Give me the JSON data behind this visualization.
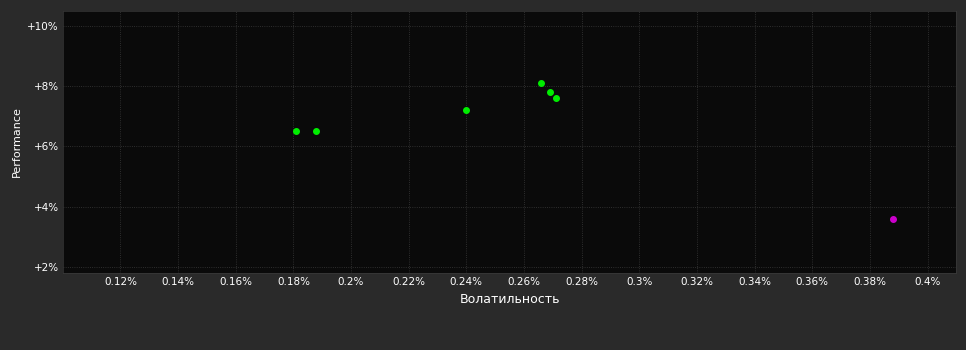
{
  "background_color": "#2a2a2a",
  "plot_bg_color": "#0a0a0a",
  "grid_color": "#3a3a3a",
  "text_color": "#ffffff",
  "xlabel": "Волатильность",
  "ylabel": "Performance",
  "xlim": [
    0.1,
    0.41
  ],
  "ylim": [
    0.018,
    0.105
  ],
  "xticks": [
    0.12,
    0.14,
    0.16,
    0.18,
    0.2,
    0.22,
    0.24,
    0.26,
    0.28,
    0.3,
    0.32,
    0.34,
    0.36,
    0.38,
    0.4
  ],
  "yticks": [
    0.02,
    0.04,
    0.06,
    0.08,
    0.1
  ],
  "ytick_labels": [
    "+2%",
    "+4%",
    "+6%",
    "+8%",
    "+10%"
  ],
  "xtick_labels": [
    "0.12%",
    "0.14%",
    "0.16%",
    "0.18%",
    "0.2%",
    "0.22%",
    "0.24%",
    "0.26%",
    "0.28%",
    "0.3%",
    "0.32%",
    "0.34%",
    "0.36%",
    "0.38%",
    "0.4%"
  ],
  "green_points": [
    [
      0.181,
      0.065
    ],
    [
      0.188,
      0.065
    ],
    [
      0.24,
      0.072
    ],
    [
      0.266,
      0.081
    ],
    [
      0.269,
      0.078
    ],
    [
      0.271,
      0.076
    ]
  ],
  "magenta_points": [
    [
      0.388,
      0.036
    ]
  ],
  "green_color": "#00ee00",
  "magenta_color": "#cc00cc",
  "marker_size": 4
}
